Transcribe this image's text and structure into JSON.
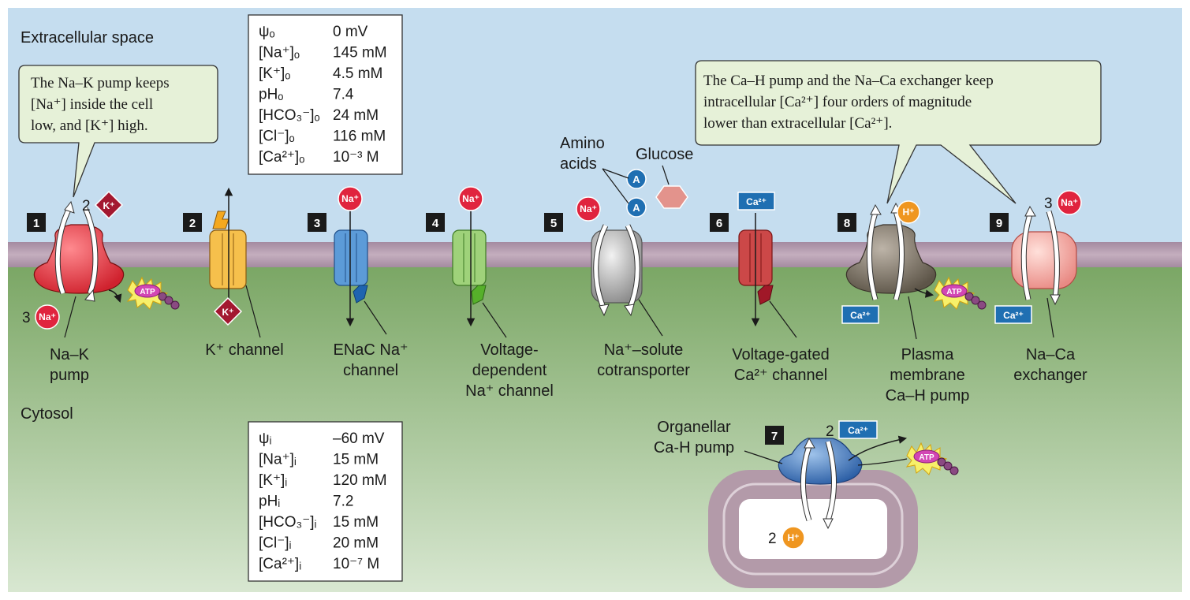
{
  "regions": {
    "extracellular": "Extracellular space",
    "cytosol": "Cytosol"
  },
  "callouts": {
    "nak": [
      "The Na–K pump keeps",
      "[Na⁺] inside the cell",
      "low, and [K⁺] high."
    ],
    "ca": [
      "The Ca–H pump and the Na–Ca exchanger keep",
      "intracellular [Ca²⁺] four orders of magnitude",
      "lower than extracellular [Ca²⁺]."
    ]
  },
  "outside_table": [
    {
      "param": "ψₒ",
      "value": "0 mV"
    },
    {
      "param": "[Na⁺]ₒ",
      "value": "145 mM"
    },
    {
      "param": "[K⁺]ₒ",
      "value": "4.5 mM"
    },
    {
      "param": "pHₒ",
      "value": "7.4"
    },
    {
      "param": "[HCO₃⁻]ₒ",
      "value": "24 mM"
    },
    {
      "param": "[Cl⁻]ₒ",
      "value": "116 mM"
    },
    {
      "param": "[Ca²⁺]ₒ",
      "value": "10⁻³ M"
    }
  ],
  "inside_table": [
    {
      "param": "ψᵢ",
      "value": "–60 mV"
    },
    {
      "param": "[Na⁺]ᵢ",
      "value": "15 mM"
    },
    {
      "param": "[K⁺]ᵢ",
      "value": "120 mM"
    },
    {
      "param": "pHᵢ",
      "value": "7.2"
    },
    {
      "param": "[HCO₃⁻]ᵢ",
      "value": "15 mM"
    },
    {
      "param": "[Cl⁻]ᵢ",
      "value": "20 mM"
    },
    {
      "param": "[Ca²⁺]ᵢ",
      "value": "10⁻⁷ M"
    }
  ],
  "ions": {
    "na": "Na⁺",
    "k": "K⁺",
    "ca": "Ca²⁺",
    "h": "H⁺",
    "aa": "A",
    "atp": "ATP"
  },
  "coefficients": {
    "nak_k": "2",
    "nak_na": "3",
    "naca_na": "3",
    "org_ca": "2",
    "org_h": "2"
  },
  "solute_labels": {
    "amino1": "Amino",
    "amino2": "acids",
    "glucose": "Glucose"
  },
  "transporters": [
    {
      "num": "1",
      "label": [
        "Na–K",
        "pump"
      ]
    },
    {
      "num": "2",
      "label": [
        "K⁺ channel"
      ]
    },
    {
      "num": "3",
      "label": [
        "ENaC Na⁺",
        "channel"
      ]
    },
    {
      "num": "4",
      "label": [
        "Voltage-",
        "dependent",
        "Na⁺ channel"
      ]
    },
    {
      "num": "5",
      "label": [
        "Na⁺–solute",
        "cotransporter"
      ]
    },
    {
      "num": "6",
      "label": [
        "Voltage-gated",
        "Ca²⁺ channel"
      ]
    },
    {
      "num": "7",
      "label": [
        "Organellar",
        "Ca-H pump"
      ]
    },
    {
      "num": "8",
      "label": [
        "Plasma",
        "membrane",
        "Ca–H pump"
      ]
    },
    {
      "num": "9",
      "label": [
        "Na–Ca",
        "exchanger"
      ]
    }
  ],
  "colors": {
    "extracellular": "#c5ddef",
    "cytosol_top": "#7faa6a",
    "cytosol_bottom": "#d6e6cf",
    "membrane": "#b39aa9",
    "callout": "#e6f1d8",
    "na": "#e0243e",
    "k": "#a31830",
    "ca": "#1f6fb2",
    "h": "#ef9620"
  }
}
